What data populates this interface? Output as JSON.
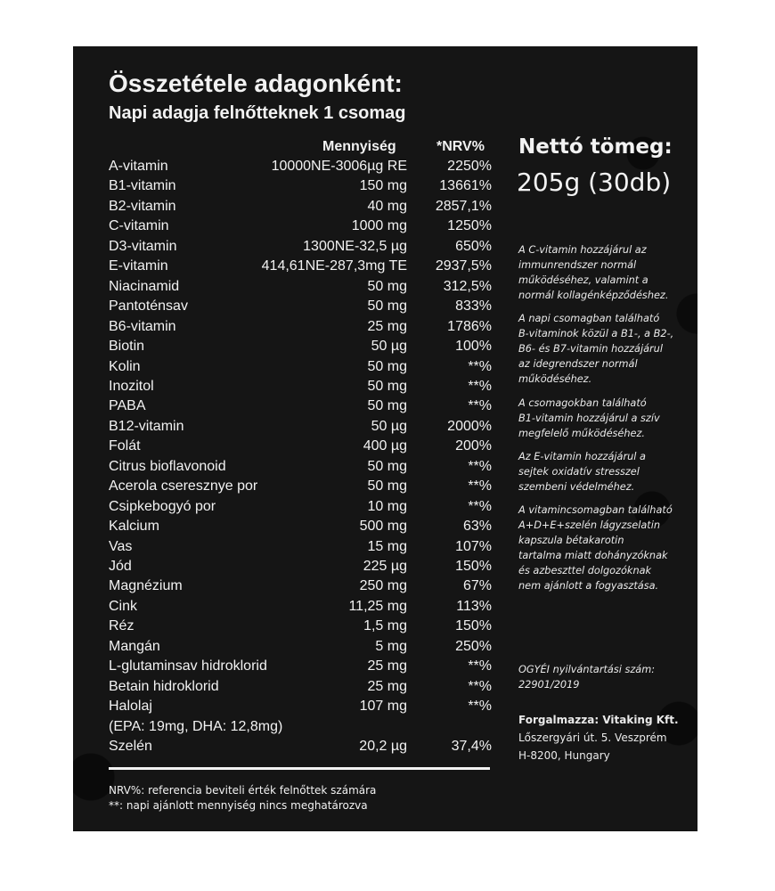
{
  "title": "Összetétele adagonként:",
  "subtitle": "Napi adagja felnőtteknek 1 csomag",
  "table": {
    "headers": {
      "amount": "Mennyiség",
      "nrv": "*NRV%"
    },
    "rows": [
      {
        "name": "A-vitamin",
        "amount": "10000NE-3006µg RE",
        "nrv": "2250%"
      },
      {
        "name": "B1-vitamin",
        "amount": "150 mg",
        "nrv": "13661%"
      },
      {
        "name": "B2-vitamin",
        "amount": "40 mg",
        "nrv": "2857,1%"
      },
      {
        "name": "C-vitamin",
        "amount": "1000 mg",
        "nrv": "1250%"
      },
      {
        "name": "D3-vitamin",
        "amount": "1300NE-32,5 µg",
        "nrv": "650%"
      },
      {
        "name": "E-vitamin",
        "amount": "414,61NE-287,3mg TE",
        "nrv": "2937,5%"
      },
      {
        "name": "Niacinamid",
        "amount": "50 mg",
        "nrv": "312,5%"
      },
      {
        "name": "Pantoténsav",
        "amount": "50 mg",
        "nrv": "833%"
      },
      {
        "name": "B6-vitamin",
        "amount": "25 mg",
        "nrv": "1786%"
      },
      {
        "name": "Biotin",
        "amount": "50 µg",
        "nrv": "100%"
      },
      {
        "name": "Kolin",
        "amount": "50 mg",
        "nrv": "**%"
      },
      {
        "name": "Inozitol",
        "amount": "50 mg",
        "nrv": "**%"
      },
      {
        "name": "PABA",
        "amount": "50 mg",
        "nrv": "**%"
      },
      {
        "name": "B12-vitamin",
        "amount": "50 µg",
        "nrv": "2000%"
      },
      {
        "name": "Folát",
        "amount": "400 µg",
        "nrv": "200%"
      },
      {
        "name": "Citrus bioflavonoid",
        "amount": "50 mg",
        "nrv": "**%"
      },
      {
        "name": "Acerola cseresznye por",
        "amount": "50 mg",
        "nrv": "**%"
      },
      {
        "name": "Csipkebogyó por",
        "amount": "10 mg",
        "nrv": "**%"
      },
      {
        "name": "Kalcium",
        "amount": "500 mg",
        "nrv": "63%"
      },
      {
        "name": "Vas",
        "amount": "15 mg",
        "nrv": "107%"
      },
      {
        "name": "Jód",
        "amount": "225 µg",
        "nrv": "150%"
      },
      {
        "name": "Magnézium",
        "amount": "250 mg",
        "nrv": "67%"
      },
      {
        "name": "Cink",
        "amount": "11,25 mg",
        "nrv": "113%"
      },
      {
        "name": "Réz",
        "amount": "1,5 mg",
        "nrv": "150%"
      },
      {
        "name": "Mangán",
        "amount": "5 mg",
        "nrv": "250%"
      },
      {
        "name": "L-glutaminsav hidroklorid",
        "amount": "25 mg",
        "nrv": "**%"
      },
      {
        "name": "Betain hidroklorid",
        "amount": "25 mg",
        "nrv": "**%"
      },
      {
        "name": "Halolaj",
        "amount": "107 mg",
        "nrv": "**%"
      },
      {
        "name": "(EPA: 19mg, DHA: 12,8mg)",
        "amount": "",
        "nrv": ""
      },
      {
        "name": "Szelén",
        "amount": "20,2 µg",
        "nrv": "37,4%"
      }
    ]
  },
  "footnotes": [
    "NRV%: referencia beviteli érték felnőttek számára",
    "**: napi ajánlott mennyiség nincs meghatározva"
  ],
  "net_weight": {
    "label": "Nettó tömeg:",
    "value": "205g (30db)"
  },
  "notes": [
    "A C-vitamin hozzájárul az\nimmunrendszer normál\nműködéséhez, valamint a\nnormál kollagénképződéshez.",
    "A napi csomagban található\nB-vitaminok közül a B1-, a B2-,\nB6- és B7-vitamin hozzájárul\naz idegrendszer normál\nműködéséhez.",
    "A csomagokban található\nB1-vitamin hozzájárul a szív\nmegfelelő működéséhez.",
    "Az E-vitamin hozzájárul a\nsejtek oxidatív stresszel\nszembeni védelméhez.",
    "A vitamincsomagban található\nA+D+E+szelén lágyzselatin\nkapszula bétakarotin\ntartalma miatt dohányzóknak\nés azbeszttel dolgozóknak\nnem ajánlott a fogyasztása.",
    "OGYÉI nyilvántartási szám:\n22901/2019"
  ],
  "distributor": {
    "name": "Forgalmazza: Vitaking Kft.",
    "address": "Lőszergyári út. 5. Veszprém\nH-8200, Hungary"
  }
}
